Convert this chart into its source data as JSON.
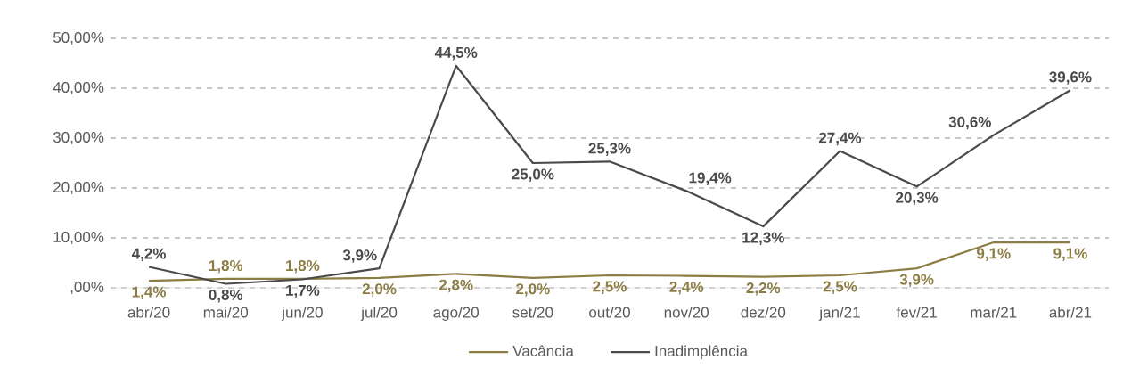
{
  "chart_data": {
    "type": "line",
    "categories": [
      "abr/20",
      "mai/20",
      "jun/20",
      "jul/20",
      "ago/20",
      "set/20",
      "out/20",
      "nov/20",
      "dez/20",
      "jan/21",
      "fev/21",
      "mar/21",
      "abr/21"
    ],
    "series": [
      {
        "name": "Vacância",
        "color": "#8c7d45",
        "values": [
          1.4,
          1.8,
          1.8,
          2.0,
          2.8,
          2.0,
          2.5,
          2.4,
          2.2,
          2.5,
          3.9,
          9.1,
          9.1
        ],
        "value_labels": [
          "1,4%",
          "1,8%",
          "1,8%",
          "2,0%",
          "2,8%",
          "2,0%",
          "2,5%",
          "2,4%",
          "2,2%",
          "2,5%",
          "3,9%",
          "9,1%",
          "9,1%"
        ]
      },
      {
        "name": "Inadimplência",
        "color": "#4a4a4a",
        "values": [
          4.2,
          0.8,
          1.7,
          3.9,
          44.5,
          25.0,
          25.3,
          19.4,
          12.3,
          27.4,
          20.3,
          30.6,
          39.6
        ],
        "value_labels": [
          "4,2%",
          "0,8%",
          "1,7%",
          "3,9%",
          "44,5%",
          "25,0%",
          "25,3%",
          "19,4%",
          "12,3%",
          "27,4%",
          "20,3%",
          "30,6%",
          "39,6%"
        ]
      }
    ],
    "ylim": [
      0,
      50
    ],
    "yticks": [
      {
        "value": 0,
        "label": ",00%"
      },
      {
        "value": 10,
        "label": "10,00%"
      },
      {
        "value": 20,
        "label": "20,00%"
      },
      {
        "value": 30,
        "label": "30,00%"
      },
      {
        "value": 40,
        "label": "40,00%"
      },
      {
        "value": 50,
        "label": "50,00%"
      }
    ],
    "grid": "y",
    "legend": "bottom",
    "marker": "none",
    "line_style": "solid"
  }
}
